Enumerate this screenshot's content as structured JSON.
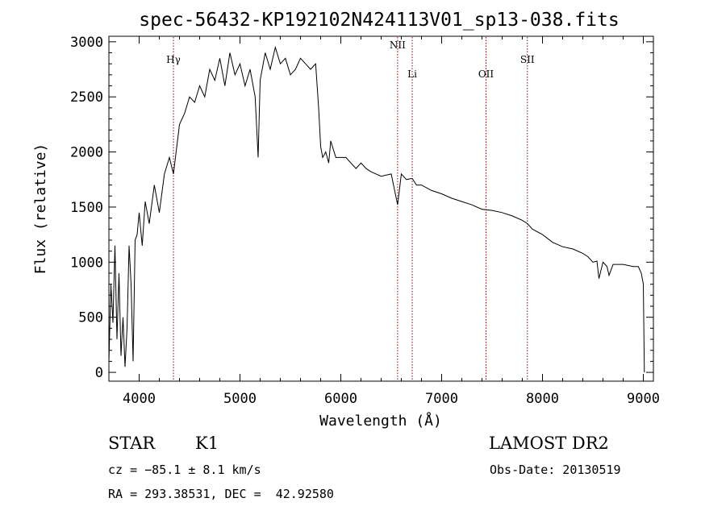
{
  "chart_data": {
    "type": "line",
    "title": "spec-56432-KP192102N424113V01_sp13-038.fits",
    "xlabel": "Wavelength (Å)",
    "ylabel": "Flux (relative)",
    "xlim": [
      3700,
      9100
    ],
    "ylim": [
      -80,
      3050
    ],
    "x_ticks": [
      4000,
      5000,
      6000,
      7000,
      8000,
      9000
    ],
    "y_ticks": [
      0,
      500,
      1000,
      1500,
      2000,
      2500,
      3000
    ],
    "grid": false,
    "series": [
      {
        "x": [
          3700,
          3720,
          3740,
          3760,
          3780,
          3800,
          3820,
          3840,
          3860,
          3880,
          3900,
          3920,
          3940,
          3960,
          3980,
          4000,
          4030,
          4060,
          4100,
          4150,
          4200,
          4250,
          4300,
          4340,
          4400,
          4450,
          4500,
          4550,
          4600,
          4650,
          4700,
          4750,
          4800,
          4850,
          4900,
          4950,
          5000,
          5050,
          5100,
          5150,
          5180,
          5200,
          5250,
          5300,
          5350,
          5400,
          5450,
          5500,
          5550,
          5600,
          5650,
          5700,
          5750,
          5780,
          5800,
          5820,
          5850,
          5880,
          5900,
          5950,
          6000,
          6050,
          6100,
          6150,
          6200,
          6250,
          6300,
          6400,
          6500,
          6563,
          6600,
          6650,
          6708,
          6750,
          6800,
          6900,
          7000,
          7100,
          7200,
          7300,
          7400,
          7500,
          7600,
          7700,
          7800,
          7850,
          7900,
          8000,
          8100,
          8200,
          8300,
          8400,
          8450,
          8500,
          8540,
          8560,
          8600,
          8640,
          8660,
          8700,
          8800,
          8900,
          8950,
          8980,
          9000,
          9010
        ],
        "y": [
          100,
          800,
          450,
          1150,
          300,
          900,
          150,
          500,
          50,
          400,
          1150,
          800,
          100,
          1200,
          1250,
          1450,
          1150,
          1550,
          1350,
          1700,
          1450,
          1800,
          1950,
          1800,
          2250,
          2350,
          2500,
          2450,
          2600,
          2500,
          2750,
          2650,
          2850,
          2600,
          2900,
          2700,
          2800,
          2600,
          2750,
          2500,
          1950,
          2650,
          2900,
          2750,
          2950,
          2800,
          2850,
          2700,
          2750,
          2850,
          2800,
          2750,
          2800,
          2400,
          2050,
          1950,
          2000,
          1900,
          2100,
          1950,
          1950,
          1950,
          1900,
          1850,
          1900,
          1850,
          1820,
          1780,
          1800,
          1520,
          1800,
          1750,
          1760,
          1700,
          1700,
          1650,
          1620,
          1580,
          1550,
          1520,
          1480,
          1470,
          1450,
          1420,
          1380,
          1350,
          1300,
          1250,
          1180,
          1140,
          1120,
          1080,
          1050,
          1000,
          1010,
          850,
          1000,
          960,
          880,
          980,
          980,
          960,
          960,
          900,
          800,
          0
        ]
      }
    ],
    "line_markers": [
      {
        "label": "Hγ",
        "x": 4340
      },
      {
        "label": "NII",
        "x": 6563
      },
      {
        "label": "Li",
        "x": 6708
      },
      {
        "label": "OII",
        "x": 7440
      },
      {
        "label": "SII",
        "x": 7850
      }
    ]
  },
  "info": {
    "object_class": "STAR",
    "subclass": "K1",
    "survey": "LAMOST DR2",
    "cz_text": "cz = −85.1 ± 8.1 km/s",
    "obs_date_text": "Obs-Date: 20130519",
    "coords_text": "RA = 293.38531, DEC =  42.92580"
  },
  "colors": {
    "axis": "#000000",
    "spectrum": "#000000",
    "marker_line": "#8b0000"
  }
}
